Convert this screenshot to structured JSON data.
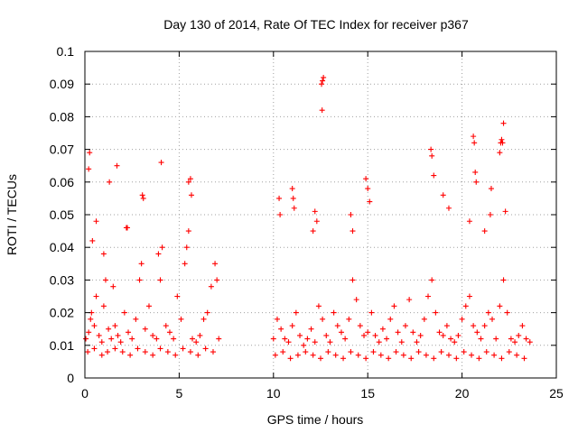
{
  "chart_data": {
    "type": "scatter",
    "title": "Day 130 of 2014, Rate Of TEC Index for receiver p367",
    "xlabel": "GPS time / hours",
    "ylabel": "ROTI / TECUs",
    "xlim": [
      0,
      25
    ],
    "ylim": [
      0,
      0.1
    ],
    "xticks": [
      0,
      5,
      10,
      15,
      20,
      25
    ],
    "xtick_labels": [
      "0",
      "5",
      "10",
      "15",
      "20",
      "25"
    ],
    "yticks": [
      0,
      0.01,
      0.02,
      0.03,
      0.04,
      0.05,
      0.06,
      0.07,
      0.08,
      0.09,
      0.1
    ],
    "ytick_labels": [
      "0",
      "0.01",
      "0.02",
      "0.03",
      "0.04",
      "0.05",
      "0.06",
      "0.07",
      "0.08",
      "0.09",
      "0.1"
    ],
    "grid": true,
    "marker": "+",
    "color": "#ff0000",
    "series": [
      {
        "x": [
          0.05,
          0.2,
          0.3,
          0.35,
          0.5,
          0.6,
          0.75,
          0.9,
          1.0,
          1.1,
          1.25,
          1.4,
          1.5,
          1.6,
          1.75,
          1.9,
          2.1,
          2.3,
          2.5,
          2.7,
          2.9,
          3.0,
          3.2,
          3.4,
          3.6,
          3.8,
          4.0,
          4.1,
          4.3,
          4.5,
          4.7,
          4.9,
          5.1,
          5.3,
          5.4,
          5.5,
          5.7,
          5.9,
          6.1,
          6.3,
          6.5,
          6.7,
          6.9,
          7.0,
          7.1,
          0.15,
          0.5,
          0.9,
          1.2,
          1.6,
          2.0,
          2.4,
          2.8,
          3.2,
          3.6,
          4.0,
          4.4,
          4.8,
          5.2,
          5.6,
          6.0,
          6.4,
          6.8,
          0.2,
          0.4,
          1.3,
          1.7,
          3.05,
          3.1,
          3.9,
          4.05,
          5.5,
          5.6,
          5.65,
          2.2,
          2.25,
          0.25,
          0.6,
          1.0,
          10.0,
          10.2,
          10.4,
          10.6,
          10.8,
          11.0,
          11.2,
          11.4,
          11.6,
          11.8,
          12.0,
          12.2,
          12.4,
          12.6,
          12.8,
          13.0,
          13.2,
          13.4,
          13.6,
          13.8,
          14.0,
          14.2,
          14.4,
          14.6,
          14.8,
          15.0,
          15.2,
          15.4,
          15.6,
          15.8,
          16.0,
          16.2,
          16.4,
          16.6,
          16.8,
          17.0,
          17.2,
          17.4,
          17.6,
          17.8,
          18.0,
          18.2,
          18.4,
          18.6,
          18.8,
          19.0,
          19.2,
          19.4,
          19.6,
          19.8,
          20.0,
          20.2,
          20.4,
          20.6,
          20.8,
          21.0,
          21.2,
          21.4,
          21.6,
          21.8,
          22.0,
          22.2,
          22.4,
          22.6,
          22.8,
          23.0,
          23.2,
          23.4,
          23.6,
          10.1,
          10.5,
          10.9,
          11.3,
          11.7,
          12.1,
          12.5,
          12.9,
          13.3,
          13.7,
          14.1,
          14.5,
          14.9,
          15.3,
          15.7,
          16.1,
          16.5,
          16.9,
          17.3,
          17.7,
          18.1,
          18.5,
          18.9,
          19.3,
          19.7,
          20.1,
          20.5,
          20.9,
          21.3,
          21.7,
          22.1,
          22.5,
          22.9,
          23.3,
          12.55,
          12.6,
          12.65,
          12.58,
          22.05,
          22.1,
          22.15,
          22.2,
          22.0,
          18.35,
          18.4,
          18.5,
          20.6,
          20.65,
          20.7,
          20.75,
          14.1,
          14.2,
          14.9,
          15.0,
          15.1,
          10.3,
          10.35,
          11.0,
          11.05,
          11.1,
          12.1,
          12.2,
          12.3,
          21.5,
          21.55,
          22.3,
          21.2,
          20.4,
          19.0,
          19.3
        ],
        "y": [
          0.012,
          0.014,
          0.018,
          0.02,
          0.016,
          0.025,
          0.013,
          0.011,
          0.022,
          0.03,
          0.015,
          0.012,
          0.028,
          0.016,
          0.013,
          0.011,
          0.02,
          0.014,
          0.012,
          0.018,
          0.03,
          0.035,
          0.015,
          0.022,
          0.013,
          0.012,
          0.03,
          0.04,
          0.016,
          0.014,
          0.012,
          0.025,
          0.018,
          0.035,
          0.04,
          0.045,
          0.012,
          0.011,
          0.013,
          0.018,
          0.02,
          0.028,
          0.035,
          0.03,
          0.012,
          0.008,
          0.009,
          0.007,
          0.008,
          0.009,
          0.008,
          0.007,
          0.009,
          0.008,
          0.007,
          0.009,
          0.008,
          0.007,
          0.009,
          0.008,
          0.007,
          0.009,
          0.008,
          0.064,
          0.042,
          0.06,
          0.065,
          0.056,
          0.055,
          0.038,
          0.066,
          0.06,
          0.061,
          0.056,
          0.046,
          0.046,
          0.069,
          0.048,
          0.038,
          0.012,
          0.018,
          0.015,
          0.012,
          0.011,
          0.016,
          0.02,
          0.013,
          0.01,
          0.012,
          0.015,
          0.011,
          0.022,
          0.018,
          0.013,
          0.011,
          0.02,
          0.016,
          0.014,
          0.012,
          0.018,
          0.03,
          0.024,
          0.016,
          0.013,
          0.014,
          0.02,
          0.013,
          0.011,
          0.015,
          0.012,
          0.018,
          0.022,
          0.014,
          0.011,
          0.016,
          0.024,
          0.014,
          0.011,
          0.013,
          0.018,
          0.025,
          0.03,
          0.02,
          0.014,
          0.013,
          0.016,
          0.012,
          0.011,
          0.013,
          0.018,
          0.022,
          0.025,
          0.016,
          0.014,
          0.012,
          0.016,
          0.02,
          0.018,
          0.012,
          0.022,
          0.03,
          0.02,
          0.012,
          0.011,
          0.013,
          0.016,
          0.012,
          0.011,
          0.007,
          0.008,
          0.006,
          0.007,
          0.008,
          0.007,
          0.006,
          0.008,
          0.007,
          0.006,
          0.008,
          0.007,
          0.006,
          0.008,
          0.007,
          0.006,
          0.008,
          0.007,
          0.006,
          0.008,
          0.007,
          0.006,
          0.008,
          0.007,
          0.006,
          0.008,
          0.007,
          0.006,
          0.008,
          0.007,
          0.006,
          0.008,
          0.007,
          0.006,
          0.09,
          0.091,
          0.092,
          0.082,
          0.072,
          0.073,
          0.072,
          0.078,
          0.069,
          0.07,
          0.068,
          0.062,
          0.074,
          0.072,
          0.063,
          0.06,
          0.05,
          0.045,
          0.061,
          0.058,
          0.054,
          0.055,
          0.05,
          0.058,
          0.055,
          0.052,
          0.045,
          0.051,
          0.048,
          0.05,
          0.058,
          0.051,
          0.045,
          0.048,
          0.056,
          0.052
        ]
      }
    ]
  }
}
